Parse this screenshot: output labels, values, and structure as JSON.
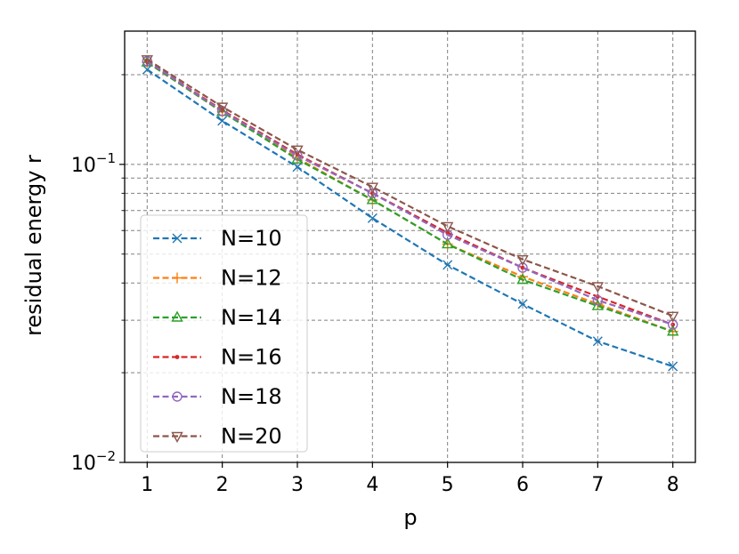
{
  "chart_data": {
    "type": "line",
    "title": "",
    "xlabel": "p",
    "ylabel": "residual energy r",
    "yscale": "log",
    "xlim": [
      0.7,
      8.3
    ],
    "ylim": [
      0.01,
      0.28
    ],
    "x_ticks": [
      1,
      2,
      3,
      4,
      5,
      6,
      7,
      8
    ],
    "y_major_ticks": [
      {
        "value": 0.1,
        "base": "10",
        "exponent": "−1"
      },
      {
        "value": 0.01,
        "base": "10",
        "exponent": "−2"
      }
    ],
    "grid": true,
    "legend_position": "lower-left",
    "x": [
      1,
      2,
      3,
      4,
      5,
      6,
      7,
      8
    ],
    "series": [
      {
        "name": "N=10",
        "color": "#1f77b4",
        "marker": "x",
        "values": [
          0.208,
          0.14,
          0.098,
          0.066,
          0.046,
          0.034,
          0.0255,
          0.021
        ]
      },
      {
        "name": "N=12",
        "color": "#ff7f0e",
        "marker": "plus",
        "values": [
          0.22,
          0.15,
          0.105,
          0.076,
          0.054,
          0.042,
          0.034,
          0.0275
        ]
      },
      {
        "name": "N=14",
        "color": "#2ca02c",
        "marker": "triangle-up",
        "values": [
          0.22,
          0.15,
          0.104,
          0.076,
          0.054,
          0.041,
          0.0335,
          0.0275
        ]
      },
      {
        "name": "N=16",
        "color": "#d62728",
        "marker": "dot",
        "values": [
          0.222,
          0.152,
          0.108,
          0.08,
          0.059,
          0.045,
          0.036,
          0.029
        ]
      },
      {
        "name": "N=18",
        "color": "#9467bd",
        "marker": "circle",
        "values": [
          0.222,
          0.151,
          0.107,
          0.08,
          0.058,
          0.045,
          0.035,
          0.029
        ]
      },
      {
        "name": "N=20",
        "color": "#8c564b",
        "marker": "triangle-down",
        "values": [
          0.225,
          0.156,
          0.112,
          0.084,
          0.062,
          0.048,
          0.039,
          0.031
        ]
      }
    ]
  }
}
